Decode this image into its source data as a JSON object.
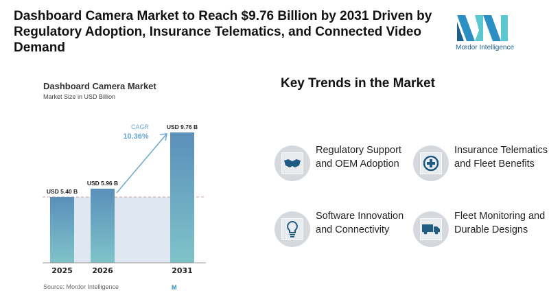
{
  "header": {
    "title": "Dashboard Camera Market to Reach $9.76 Billion by 2031 Driven by Regulatory Adoption, Insurance Telematics, and Connected Video Demand",
    "logo_text": "Mordor Intelligence"
  },
  "chart_data": {
    "type": "bar",
    "title": "Dashboard Camera Market",
    "subtitle": "Market Size in USD Billion",
    "categories": [
      "2025",
      "2026",
      "2031"
    ],
    "values": [
      5.4,
      5.96,
      9.76
    ],
    "data_labels": [
      "USD 5.40 B",
      "USD 5.96 B",
      "USD 9.76 B"
    ],
    "annotation": {
      "label": "CAGR",
      "value": "10.36%"
    },
    "source": "Source: Mordor Intelligence",
    "colors": {
      "bar_top": "#5a8fba",
      "bar_bottom": "#7fc3c9",
      "cagr": "#6aa7cf",
      "band": "#dfe8f0"
    },
    "grid": false
  },
  "trends": {
    "title": "Key Trends in the Market",
    "items": [
      {
        "label": "Regulatory Support and OEM Adoption",
        "icon": "handshake-icon"
      },
      {
        "label": "Insurance Telematics and Fleet Benefits",
        "icon": "plus-circle-icon"
      },
      {
        "label": "Software Innovation and Connectivity",
        "icon": "lightbulb-icon"
      },
      {
        "label": "Fleet Monitoring and Durable Designs",
        "icon": "truck-icon"
      }
    ],
    "icon_color": "#1f5b82"
  }
}
